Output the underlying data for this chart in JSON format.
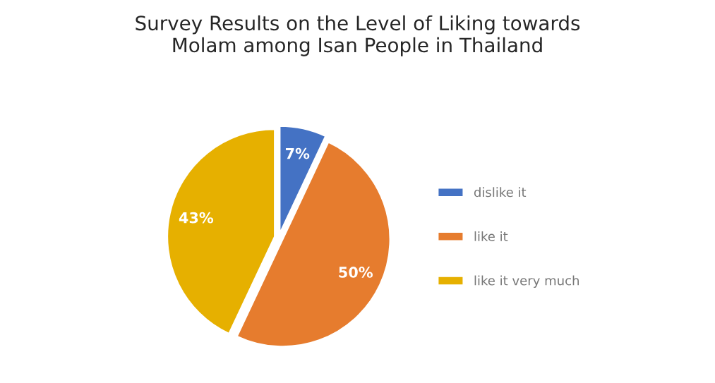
{
  "chart_data": {
    "type": "pie",
    "title": "Survey Results on the Level of Liking towards\nMolam among Isan People in Thailand",
    "categories": [
      "dislike it",
      "like it",
      "like it very much"
    ],
    "values": [
      7,
      50,
      43
    ],
    "colors": [
      "#4472c4",
      "#e67c2e",
      "#e6b000"
    ],
    "value_labels": [
      "7%",
      "50%",
      "43%"
    ],
    "legend": "right"
  }
}
